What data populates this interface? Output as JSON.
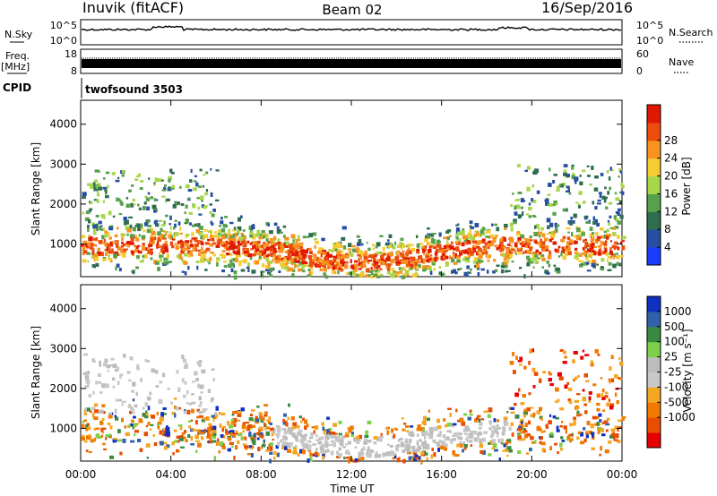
{
  "header": {
    "station": "Inuvik (fitACF)",
    "beam": "Beam 02",
    "date": "16/Sep/2016",
    "cpid_label": "CPID",
    "cpid_value": "twofsound 3503"
  },
  "strips": {
    "nsky_label": "N.Sky",
    "nsearch_label": "N.Search",
    "nsky_ticks": [
      "10^5",
      "10^0"
    ],
    "nsearch_ticks": [
      "10^5",
      "10^0"
    ],
    "freq_label_1": "Freq.",
    "freq_label_2": "[MHz]",
    "freq_ticks": [
      "18",
      "8"
    ],
    "nave_label": "Nave",
    "nave_ticks": [
      "60",
      "0"
    ]
  },
  "colors": {
    "power": [
      "#1a3cff",
      "#264ea3",
      "#2f6d4f",
      "#57a04c",
      "#a8d64a",
      "#f5cc32",
      "#f7931e",
      "#ec4d0c",
      "#e01800"
    ],
    "velocity": [
      "#e80000",
      "#e84d00",
      "#f07a00",
      "#f5a623",
      "#c8c8c8",
      "#bdbdbd",
      "#7ed04a",
      "#3a8a40",
      "#2f62a8",
      "#1030c0"
    ]
  },
  "chart_data": [
    {
      "type": "heatmap",
      "name": "power",
      "xlabel": "",
      "ylabel": "Slant Range [km]",
      "x_ticks": [
        "00:00",
        "04:00",
        "08:00",
        "12:00",
        "16:00",
        "20:00",
        "00:00"
      ],
      "y_ticks": [
        1000,
        2000,
        3000,
        4000
      ],
      "ylim": [
        180,
        4600
      ],
      "colorbar": {
        "label": "Power [dB]",
        "ticks": [
          4,
          8,
          12,
          16,
          20,
          24,
          28
        ]
      },
      "grid": false
    },
    {
      "type": "heatmap",
      "name": "velocity",
      "xlabel": "Time UT",
      "ylabel": "Slant Range [km]",
      "x_ticks": [
        "00:00",
        "04:00",
        "08:00",
        "12:00",
        "16:00",
        "20:00",
        "00:00"
      ],
      "y_ticks": [
        1000,
        2000,
        3000,
        4000
      ],
      "ylim": [
        180,
        4600
      ],
      "colorbar": {
        "label": "Velocity [m s⁻¹]",
        "ticks": [
          1000,
          500,
          100,
          25,
          -25,
          -100,
          -500,
          -1000
        ]
      },
      "grid": false
    }
  ]
}
